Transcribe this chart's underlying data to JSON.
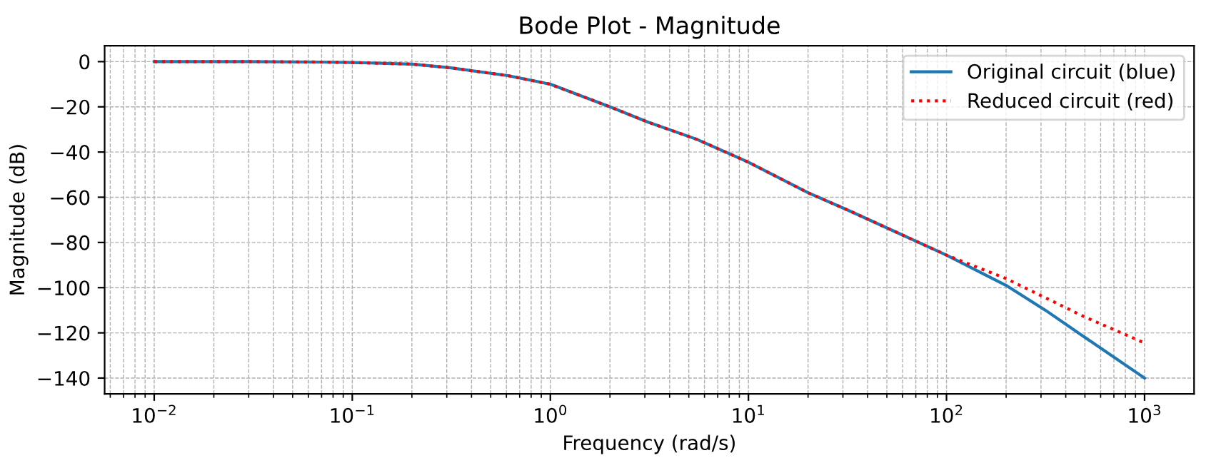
{
  "chart_data": {
    "type": "line",
    "title": "Bode Plot - Magnitude",
    "xlabel": "Frequency (rad/s)",
    "ylabel": "Magnitude (dB)",
    "log": "x",
    "grid": true,
    "legend": "top right",
    "xlim": [
      0.00562,
      1778
    ],
    "xticks": [
      {
        "value": 0.01,
        "label": "10$^{−2}$"
      },
      {
        "value": 0.1,
        "label": "10$^{−1}$"
      },
      {
        "value": 1,
        "label": "10$^{0}$"
      },
      {
        "value": 10,
        "label": "10$^{1}$"
      },
      {
        "value": 100,
        "label": "10$^{2}$"
      },
      {
        "value": 1000,
        "label": "10$^{3}$"
      }
    ],
    "ylim": [
      -147,
      7
    ],
    "yticks": [
      0,
      -20,
      -40,
      -60,
      -80,
      -100,
      -120,
      -140
    ],
    "series": [
      {
        "name": "Original circuit (blue)",
        "color": "#1f77b4",
        "line_style": "solid",
        "x": [
          0.01,
          0.03,
          0.07,
          0.1,
          0.2,
          0.31,
          0.61,
          1,
          2,
          3.1,
          5.5,
          10,
          20,
          31.6,
          100,
          200,
          316,
          500,
          1000
        ],
        "values": [
          0,
          0,
          -0.2,
          -0.4,
          -1.1,
          -2.7,
          -6.2,
          -10,
          -20,
          -26.7,
          -34.4,
          -44.5,
          -58,
          -65.6,
          -85.6,
          -99,
          -110,
          -122,
          -140
        ]
      },
      {
        "name": "Reduced circuit (red)",
        "color": "#ff0000",
        "line_style": "dotted",
        "x": [
          0.01,
          0.03,
          0.07,
          0.1,
          0.2,
          0.31,
          0.61,
          1,
          2,
          3.1,
          5.5,
          10,
          20,
          31.6,
          100,
          200,
          316,
          500,
          1000
        ],
        "values": [
          0,
          0,
          -0.2,
          -0.4,
          -1.1,
          -2.7,
          -6.2,
          -10,
          -20,
          -26.7,
          -34.4,
          -44.5,
          -58,
          -65.6,
          -85.6,
          -96,
          -104.5,
          -113,
          -124.5
        ]
      }
    ]
  }
}
